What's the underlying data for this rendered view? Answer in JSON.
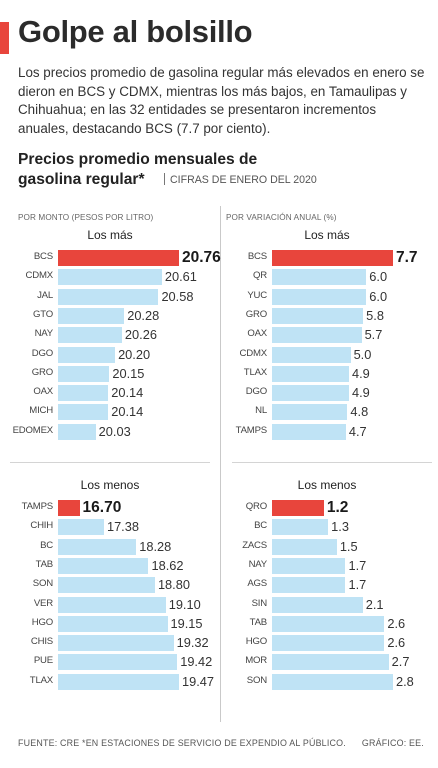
{
  "header": {
    "title": "Golpe al bolsillo",
    "intro": "Los precios promedio de gasolina regular más elevados en enero se dieron en BCS y CDMX, mientras los más bajos, en Tamaulipas y Chihuahua; en las 32 entidades se presentaron incrementos anuales, destacando BCS (7.7 por ciento).",
    "subtitle": "Precios promedio mensuales de gasolina regular*",
    "date_note": "CIFRAS DE ENERO DEL 2020"
  },
  "captions": {
    "left": "POR MONTO (PESOS POR LITRO)",
    "right": "POR VARIACIÓN ANUAL (%)"
  },
  "footer": {
    "source": "FUENTE: CRE *EN ESTACIONES DE SERVICIO DE EXPENDIO AL PÚBLICO.",
    "credit": "GRÁFICO: EE."
  },
  "colors": {
    "accent": "#e8453c",
    "highlight_bar": "#e8453c",
    "bar": "#bfe3f5"
  },
  "chart_data": [
    {
      "type": "bar",
      "title": "Los más",
      "unit": "pesos por litro",
      "value_format": "fixed2",
      "categories": [
        "BCS",
        "CDMX",
        "JAL",
        "GTO",
        "NAY",
        "DGO",
        "GRO",
        "OAX",
        "MICH",
        "EDOMEX"
      ],
      "values": [
        20.76,
        20.61,
        20.58,
        20.28,
        20.26,
        20.2,
        20.15,
        20.14,
        20.14,
        20.03
      ],
      "axis_min": 19.7,
      "axis_max": 20.76,
      "highlight_index": 0
    },
    {
      "type": "bar",
      "title": "Los más",
      "unit": "%",
      "value_format": "fixed1",
      "categories": [
        "BCS",
        "QR",
        "YUC",
        "GRO",
        "OAX",
        "CDMX",
        "TLAX",
        "DGO",
        "NL",
        "TAMPS"
      ],
      "values": [
        7.7,
        6.0,
        6.0,
        5.8,
        5.7,
        5.0,
        4.9,
        4.9,
        4.8,
        4.7
      ],
      "axis_min": 0,
      "axis_max": 7.7,
      "highlight_index": 0
    },
    {
      "type": "bar",
      "title": "Los menos",
      "unit": "pesos por litro",
      "value_format": "fixed2",
      "categories": [
        "TAMPS",
        "CHIH",
        "BC",
        "TAB",
        "SON",
        "VER",
        "HGO",
        "CHIS",
        "PUE",
        "TLAX"
      ],
      "values": [
        16.7,
        17.38,
        18.28,
        18.62,
        18.8,
        19.1,
        19.15,
        19.32,
        19.42,
        19.47
      ],
      "axis_min": 16.1,
      "axis_max": 19.47,
      "highlight_index": 0
    },
    {
      "type": "bar",
      "title": "Los menos",
      "unit": "%",
      "value_format": "fixed1",
      "categories": [
        "QRO",
        "BC",
        "ZACS",
        "NAY",
        "AGS",
        "SIN",
        "TAB",
        "HGO",
        "MOR",
        "SON"
      ],
      "values": [
        1.2,
        1.3,
        1.5,
        1.7,
        1.7,
        2.1,
        2.6,
        2.6,
        2.7,
        2.8
      ],
      "axis_min": 0,
      "axis_max": 2.8,
      "highlight_index": 0
    }
  ]
}
